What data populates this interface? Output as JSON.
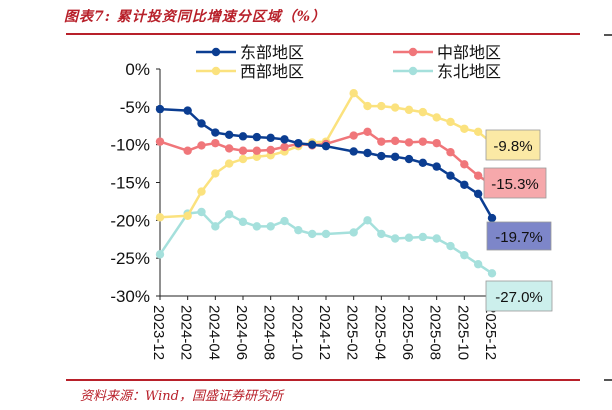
{
  "header": {
    "title": "图表7:  累计投资同比增速分区域（%）"
  },
  "footer": {
    "source": "资料来源：Wind，国盛证券研究所"
  },
  "colors": {
    "accent": "#b8202a",
    "east": "#0b3d91",
    "central": "#f0767a",
    "west": "#fbe27e",
    "northeast": "#a5e0dc",
    "label_east_bg": "#7d86c9",
    "label_central_bg": "#f6a8ab",
    "label_west_bg": "#fbe9a5",
    "label_northeast_bg": "#ccefec"
  },
  "chart_data": {
    "type": "line",
    "title": "",
    "xlabel": "",
    "ylabel": "",
    "ylim": [
      -30,
      0
    ],
    "yticks": [
      0,
      -5,
      -10,
      -15,
      -20,
      -25,
      -30
    ],
    "ytick_labels": [
      "0%",
      "-5%",
      "-10%",
      "-15%",
      "-20%",
      "-25%",
      "-30%"
    ],
    "x": [
      "2023-12",
      "2024-01",
      "2024-02",
      "2024-03",
      "2024-04",
      "2024-05",
      "2024-06",
      "2024-07",
      "2024-08",
      "2024-09",
      "2024-10",
      "2024-11",
      "2024-12",
      "2025-01",
      "2025-02",
      "2025-03",
      "2025-04",
      "2025-05",
      "2025-06",
      "2025-07",
      "2025-08",
      "2025-09",
      "2025-10",
      "2025-11",
      "2025-12"
    ],
    "xtick_labels": [
      "2023-12",
      "2024-02",
      "2024-04",
      "2024-06",
      "2024-08",
      "2024-10",
      "2024-12",
      "2025-02",
      "2025-04",
      "2025-06",
      "2025-08",
      "2025-10",
      "2025-12"
    ],
    "legend_position": "top",
    "series": [
      {
        "name": "东部地区",
        "key": "east",
        "values": [
          -5.3,
          null,
          -5.5,
          -7.2,
          -8.4,
          -8.7,
          -8.9,
          -9.0,
          -9.1,
          -9.3,
          -9.8,
          -10.0,
          -10.2,
          null,
          -10.9,
          -11.1,
          -11.5,
          -11.6,
          -11.9,
          -12.4,
          -12.9,
          -14.1,
          -15.3,
          -16.5,
          -19.7
        ]
      },
      {
        "name": "中部地区",
        "key": "central",
        "values": [
          -9.6,
          null,
          -10.8,
          -10.1,
          -9.8,
          -10.5,
          -10.8,
          -10.8,
          -10.7,
          -10.3,
          -9.9,
          -10.1,
          -9.9,
          null,
          -8.8,
          -8.3,
          -9.6,
          -9.5,
          -9.7,
          -9.6,
          -9.8,
          -11.0,
          -12.6,
          -14.1,
          -15.3
        ]
      },
      {
        "name": "西部地区",
        "key": "west",
        "values": [
          -19.6,
          null,
          -19.4,
          -16.2,
          -13.8,
          -12.5,
          -11.9,
          -11.6,
          -11.4,
          -10.9,
          -10.2,
          -9.7,
          -9.6,
          null,
          -3.2,
          -4.9,
          -4.9,
          -5.1,
          -5.4,
          -5.7,
          -6.4,
          -7.0,
          -7.9,
          -8.3,
          -9.8
        ]
      },
      {
        "name": "东北地区",
        "key": "northeast",
        "values": [
          -24.5,
          null,
          -19.1,
          -18.9,
          -20.8,
          -19.2,
          -20.2,
          -20.8,
          -20.8,
          -20.1,
          -21.3,
          -21.8,
          -21.8,
          null,
          -21.6,
          -20.0,
          -21.8,
          -22.4,
          -22.3,
          -22.2,
          -22.4,
          -23.4,
          -24.6,
          -25.8,
          -27.0
        ]
      }
    ],
    "end_labels": {
      "west": "-9.8%",
      "central": "-15.3%",
      "east": "-19.7%",
      "northeast": "-27.0%"
    }
  }
}
